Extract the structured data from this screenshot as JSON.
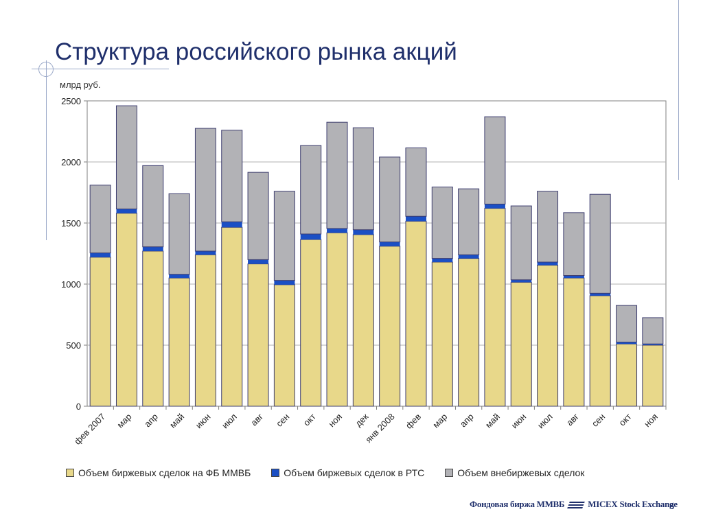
{
  "slide": {
    "title": "Структура российского рынка акций",
    "page_number": "6",
    "footer_left": "Фондовая биржа ММВБ",
    "footer_right": "MICEX Stock Exchange"
  },
  "chart_data": {
    "type": "bar",
    "stacked": true,
    "unit_label": "млрд руб.",
    "ylim": [
      0,
      2500
    ],
    "yticks": [
      0,
      500,
      1000,
      1500,
      2000,
      2500
    ],
    "grid": true,
    "legend_position": "bottom",
    "categories": [
      "фев 2007",
      "мар",
      "апр",
      "май",
      "июн",
      "июл",
      "авг",
      "сен",
      "окт",
      "ноя",
      "дек",
      "янв 2008",
      "фев",
      "мар",
      "апр",
      "май",
      "июн",
      "июл",
      "авг",
      "сен",
      "окт",
      "ноя"
    ],
    "series": [
      {
        "name": "Объем биржевых сделок на ФБ ММВБ",
        "color": "#e8d88a",
        "values": [
          1220,
          1580,
          1270,
          1050,
          1240,
          1465,
          1165,
          995,
          1365,
          1420,
          1405,
          1310,
          1515,
          1180,
          1210,
          1620,
          1015,
          1155,
          1050,
          905,
          510,
          500
        ]
      },
      {
        "name": "Объем биржевых сделок в РТС",
        "color": "#1b4fc4",
        "values": [
          35,
          35,
          35,
          30,
          30,
          45,
          35,
          35,
          45,
          35,
          40,
          35,
          40,
          30,
          30,
          35,
          20,
          25,
          20,
          20,
          15,
          10
        ]
      },
      {
        "name": "Объем внебиржевых сделок",
        "color": "#b2b2b6",
        "values": [
          555,
          845,
          665,
          660,
          1005,
          750,
          715,
          730,
          725,
          870,
          835,
          695,
          560,
          585,
          540,
          715,
          605,
          580,
          515,
          810,
          300,
          215
        ]
      }
    ]
  }
}
